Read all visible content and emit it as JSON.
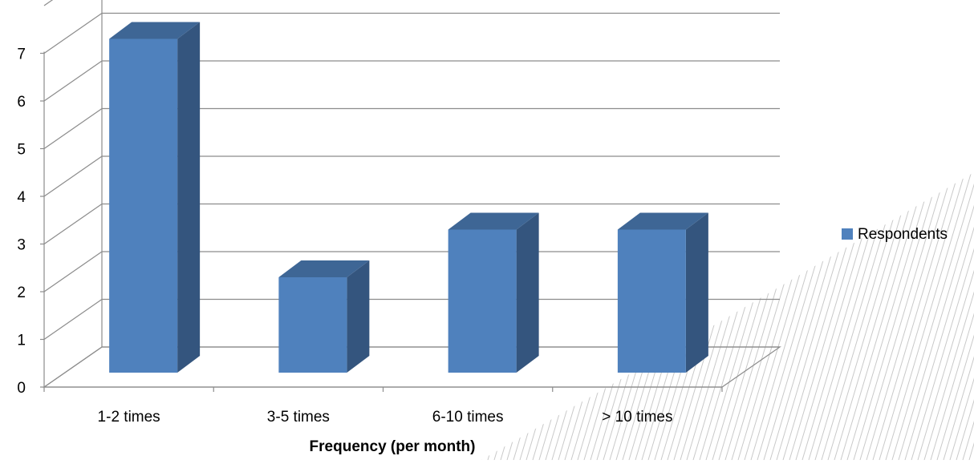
{
  "chart_data": {
    "type": "bar",
    "categories": [
      "1-2 times",
      "3-5 times",
      "6-10 times",
      "> 10 times"
    ],
    "series": [
      {
        "name": "Respondents",
        "values": [
          7,
          2,
          3,
          3
        ]
      }
    ],
    "title": "",
    "xlabel": "Frequency (per month)",
    "ylabel": "",
    "ylim": [
      0,
      7
    ],
    "yticks": [
      "0",
      "1",
      "2",
      "3",
      "4",
      "5",
      "6",
      "7"
    ],
    "grid": true,
    "three_d": true,
    "legend_position": "right",
    "colors": {
      "bar_front": "#4F81BD",
      "bar_side": "#34557E",
      "bar_top": "#3E6695",
      "grid": "#8C8C8C",
      "axis": "#8C8C8C",
      "text": "#000000",
      "watermark": "#C9C9C9"
    }
  }
}
